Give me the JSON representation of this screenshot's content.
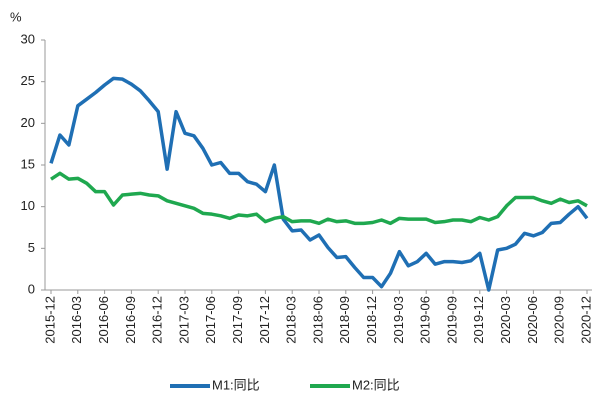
{
  "chart_data": {
    "type": "line",
    "y_label": "%",
    "categories": [
      "2015-12",
      null,
      null,
      "2016-03",
      null,
      null,
      "2016-06",
      null,
      null,
      "2016-09",
      null,
      null,
      "2016-12",
      null,
      null,
      "2017-03",
      null,
      null,
      "2017-06",
      null,
      null,
      "2017-09",
      null,
      null,
      "2017-12",
      null,
      null,
      "2018-03",
      null,
      null,
      "2018-06",
      null,
      null,
      "2018-09",
      null,
      null,
      "2018-12",
      null,
      null,
      "2019-03",
      null,
      null,
      "2019-06",
      null,
      null,
      "2019-09",
      null,
      null,
      "2019-12",
      null,
      null,
      "2020-03",
      null,
      null,
      "2020-06",
      null,
      null,
      "2020-09",
      null,
      null,
      "2020-12"
    ],
    "series": [
      {
        "name": "M1:同比",
        "color": "#1f6fb4",
        "values": [
          15.2,
          18.6,
          17.4,
          22.1,
          22.9,
          23.7,
          24.6,
          25.4,
          25.3,
          24.7,
          23.9,
          22.7,
          21.4,
          14.5,
          21.4,
          18.8,
          18.5,
          17.0,
          15.0,
          15.3,
          14.0,
          14.0,
          13.0,
          12.7,
          11.8,
          15.0,
          8.5,
          7.1,
          7.2,
          6.0,
          6.6,
          5.1,
          3.9,
          4.0,
          2.7,
          1.5,
          1.5,
          0.4,
          2.0,
          4.6,
          2.9,
          3.4,
          4.4,
          3.1,
          3.4,
          3.4,
          3.3,
          3.5,
          4.4,
          0.0,
          4.8,
          5.0,
          5.5,
          6.8,
          6.5,
          6.9,
          8.0,
          8.1,
          9.1,
          10.0,
          8.6
        ]
      },
      {
        "name": "M2:同比",
        "color": "#1fa84f",
        "values": [
          13.3,
          14.0,
          13.3,
          13.4,
          12.8,
          11.8,
          11.8,
          10.2,
          11.4,
          11.5,
          11.6,
          11.4,
          11.3,
          10.7,
          10.4,
          10.1,
          9.8,
          9.2,
          9.1,
          8.9,
          8.6,
          9.0,
          8.9,
          9.1,
          8.2,
          8.6,
          8.8,
          8.2,
          8.3,
          8.3,
          8.0,
          8.5,
          8.2,
          8.3,
          8.0,
          8.0,
          8.1,
          8.4,
          8.0,
          8.6,
          8.5,
          8.5,
          8.5,
          8.1,
          8.2,
          8.4,
          8.4,
          8.2,
          8.7,
          8.4,
          8.8,
          10.1,
          11.1,
          11.1,
          11.1,
          10.7,
          10.4,
          10.9,
          10.5,
          10.7,
          10.1
        ]
      }
    ],
    "ylim": [
      0,
      30
    ],
    "yticks": [
      0,
      5,
      10,
      15,
      20,
      25,
      30
    ],
    "grid": false,
    "legend": "bottom"
  }
}
